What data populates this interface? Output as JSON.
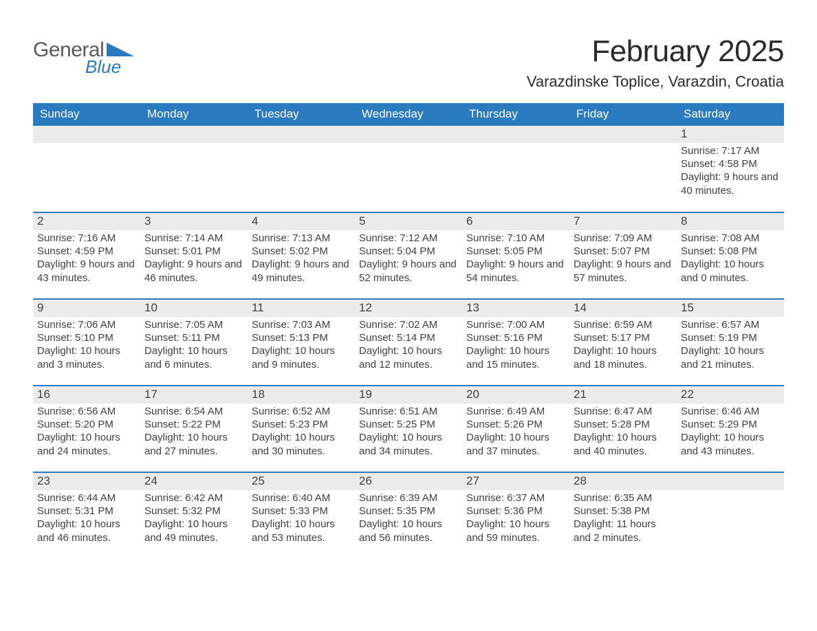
{
  "logo": {
    "line1": "General",
    "line2": "Blue",
    "icon": "triangle-icon",
    "color1": "#5a5a5a",
    "color2": "#2a7ac0"
  },
  "header": {
    "month_title": "February 2025",
    "location": "Varazdinske Toplice, Varazdin, Croatia"
  },
  "style": {
    "header_bg": "#2a7ac0",
    "row_top_border": "#2a7ac0",
    "daynum_bg": "#ebebeb",
    "text_color": "#303030",
    "font_family": "Arial",
    "title_fontsize": 44,
    "location_fontsize": 22,
    "dayhead_fontsize": 17,
    "body_fontsize": 15
  },
  "days_of_week": [
    "Sunday",
    "Monday",
    "Tuesday",
    "Wednesday",
    "Thursday",
    "Friday",
    "Saturday"
  ],
  "weeks": [
    [
      null,
      null,
      null,
      null,
      null,
      null,
      {
        "n": "1",
        "sunrise": "7:17 AM",
        "sunset": "4:58 PM",
        "daylight": "9 hours and 40 minutes."
      }
    ],
    [
      {
        "n": "2",
        "sunrise": "7:16 AM",
        "sunset": "4:59 PM",
        "daylight": "9 hours and 43 minutes."
      },
      {
        "n": "3",
        "sunrise": "7:14 AM",
        "sunset": "5:01 PM",
        "daylight": "9 hours and 46 minutes."
      },
      {
        "n": "4",
        "sunrise": "7:13 AM",
        "sunset": "5:02 PM",
        "daylight": "9 hours and 49 minutes."
      },
      {
        "n": "5",
        "sunrise": "7:12 AM",
        "sunset": "5:04 PM",
        "daylight": "9 hours and 52 minutes."
      },
      {
        "n": "6",
        "sunrise": "7:10 AM",
        "sunset": "5:05 PM",
        "daylight": "9 hours and 54 minutes."
      },
      {
        "n": "7",
        "sunrise": "7:09 AM",
        "sunset": "5:07 PM",
        "daylight": "9 hours and 57 minutes."
      },
      {
        "n": "8",
        "sunrise": "7:08 AM",
        "sunset": "5:08 PM",
        "daylight": "10 hours and 0 minutes."
      }
    ],
    [
      {
        "n": "9",
        "sunrise": "7:06 AM",
        "sunset": "5:10 PM",
        "daylight": "10 hours and 3 minutes."
      },
      {
        "n": "10",
        "sunrise": "7:05 AM",
        "sunset": "5:11 PM",
        "daylight": "10 hours and 6 minutes."
      },
      {
        "n": "11",
        "sunrise": "7:03 AM",
        "sunset": "5:13 PM",
        "daylight": "10 hours and 9 minutes."
      },
      {
        "n": "12",
        "sunrise": "7:02 AM",
        "sunset": "5:14 PM",
        "daylight": "10 hours and 12 minutes."
      },
      {
        "n": "13",
        "sunrise": "7:00 AM",
        "sunset": "5:16 PM",
        "daylight": "10 hours and 15 minutes."
      },
      {
        "n": "14",
        "sunrise": "6:59 AM",
        "sunset": "5:17 PM",
        "daylight": "10 hours and 18 minutes."
      },
      {
        "n": "15",
        "sunrise": "6:57 AM",
        "sunset": "5:19 PM",
        "daylight": "10 hours and 21 minutes."
      }
    ],
    [
      {
        "n": "16",
        "sunrise": "6:56 AM",
        "sunset": "5:20 PM",
        "daylight": "10 hours and 24 minutes."
      },
      {
        "n": "17",
        "sunrise": "6:54 AM",
        "sunset": "5:22 PM",
        "daylight": "10 hours and 27 minutes."
      },
      {
        "n": "18",
        "sunrise": "6:52 AM",
        "sunset": "5:23 PM",
        "daylight": "10 hours and 30 minutes."
      },
      {
        "n": "19",
        "sunrise": "6:51 AM",
        "sunset": "5:25 PM",
        "daylight": "10 hours and 34 minutes."
      },
      {
        "n": "20",
        "sunrise": "6:49 AM",
        "sunset": "5:26 PM",
        "daylight": "10 hours and 37 minutes."
      },
      {
        "n": "21",
        "sunrise": "6:47 AM",
        "sunset": "5:28 PM",
        "daylight": "10 hours and 40 minutes."
      },
      {
        "n": "22",
        "sunrise": "6:46 AM",
        "sunset": "5:29 PM",
        "daylight": "10 hours and 43 minutes."
      }
    ],
    [
      {
        "n": "23",
        "sunrise": "6:44 AM",
        "sunset": "5:31 PM",
        "daylight": "10 hours and 46 minutes."
      },
      {
        "n": "24",
        "sunrise": "6:42 AM",
        "sunset": "5:32 PM",
        "daylight": "10 hours and 49 minutes."
      },
      {
        "n": "25",
        "sunrise": "6:40 AM",
        "sunset": "5:33 PM",
        "daylight": "10 hours and 53 minutes."
      },
      {
        "n": "26",
        "sunrise": "6:39 AM",
        "sunset": "5:35 PM",
        "daylight": "10 hours and 56 minutes."
      },
      {
        "n": "27",
        "sunrise": "6:37 AM",
        "sunset": "5:36 PM",
        "daylight": "10 hours and 59 minutes."
      },
      {
        "n": "28",
        "sunrise": "6:35 AM",
        "sunset": "5:38 PM",
        "daylight": "11 hours and 2 minutes."
      },
      null
    ]
  ],
  "labels": {
    "sunrise": "Sunrise:",
    "sunset": "Sunset:",
    "daylight": "Daylight:"
  }
}
